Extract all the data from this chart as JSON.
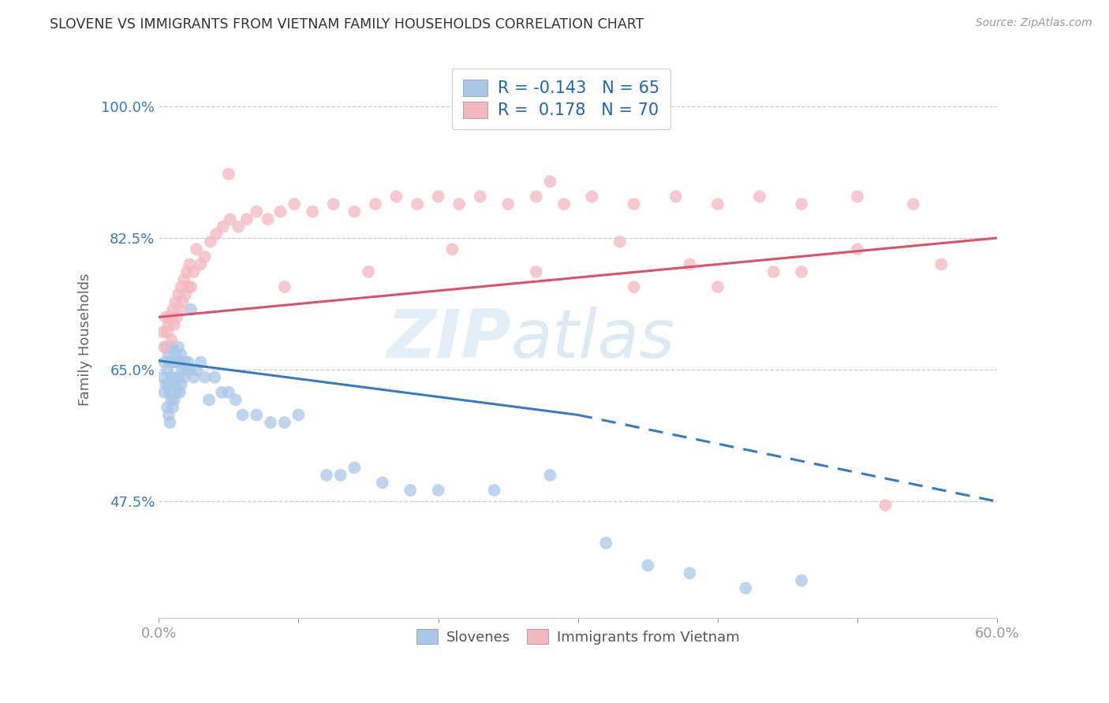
{
  "title": "SLOVENE VS IMMIGRANTS FROM VIETNAM FAMILY HOUSEHOLDS CORRELATION CHART",
  "source": "Source: ZipAtlas.com",
  "ylabel": "Family Households",
  "ytick_labels": [
    "47.5%",
    "65.0%",
    "82.5%",
    "100.0%"
  ],
  "ytick_values": [
    0.475,
    0.65,
    0.825,
    1.0
  ],
  "xlim": [
    0.0,
    0.6
  ],
  "ylim": [
    0.32,
    1.06
  ],
  "xtick_positions": [
    0.0,
    0.1,
    0.2,
    0.3,
    0.4,
    0.5,
    0.6
  ],
  "xtick_labels": [
    "0.0%",
    "",
    "",
    "",
    "",
    "",
    "60.0%"
  ],
  "legend_blue_r": "-0.143",
  "legend_blue_n": "65",
  "legend_pink_r": " 0.178",
  "legend_pink_n": "70",
  "blue_scatter_color": "#a8c8e8",
  "pink_scatter_color": "#f4b8c0",
  "blue_line_color": "#3a7abf",
  "pink_line_color": "#d9536a",
  "watermark_zip": "ZIP",
  "watermark_atlas": "atlas",
  "slovenes_x": [
    0.003,
    0.004,
    0.004,
    0.005,
    0.005,
    0.006,
    0.006,
    0.007,
    0.007,
    0.007,
    0.008,
    0.008,
    0.008,
    0.009,
    0.009,
    0.009,
    0.01,
    0.01,
    0.01,
    0.011,
    0.011,
    0.012,
    0.012,
    0.013,
    0.013,
    0.014,
    0.014,
    0.015,
    0.015,
    0.016,
    0.016,
    0.017,
    0.018,
    0.019,
    0.02,
    0.021,
    0.022,
    0.023,
    0.025,
    0.027,
    0.03,
    0.033,
    0.036,
    0.04,
    0.045,
    0.05,
    0.055,
    0.06,
    0.07,
    0.08,
    0.09,
    0.1,
    0.12,
    0.13,
    0.14,
    0.16,
    0.18,
    0.2,
    0.24,
    0.28,
    0.32,
    0.35,
    0.38,
    0.42,
    0.46
  ],
  "slovenes_y": [
    0.64,
    0.62,
    0.66,
    0.63,
    0.68,
    0.6,
    0.65,
    0.59,
    0.63,
    0.67,
    0.58,
    0.62,
    0.66,
    0.61,
    0.64,
    0.68,
    0.6,
    0.64,
    0.68,
    0.61,
    0.66,
    0.63,
    0.67,
    0.62,
    0.66,
    0.64,
    0.68,
    0.62,
    0.66,
    0.63,
    0.67,
    0.65,
    0.64,
    0.66,
    0.65,
    0.66,
    0.65,
    0.73,
    0.64,
    0.65,
    0.66,
    0.64,
    0.61,
    0.64,
    0.62,
    0.62,
    0.61,
    0.59,
    0.59,
    0.58,
    0.58,
    0.59,
    0.51,
    0.51,
    0.52,
    0.5,
    0.49,
    0.49,
    0.49,
    0.51,
    0.42,
    0.39,
    0.38,
    0.36,
    0.37
  ],
  "vietnam_x": [
    0.003,
    0.004,
    0.005,
    0.006,
    0.007,
    0.008,
    0.009,
    0.01,
    0.011,
    0.012,
    0.013,
    0.014,
    0.015,
    0.016,
    0.017,
    0.018,
    0.019,
    0.02,
    0.021,
    0.022,
    0.023,
    0.025,
    0.027,
    0.03,
    0.033,
    0.037,
    0.041,
    0.046,
    0.051,
    0.057,
    0.063,
    0.07,
    0.078,
    0.087,
    0.097,
    0.11,
    0.125,
    0.14,
    0.155,
    0.17,
    0.185,
    0.2,
    0.215,
    0.23,
    0.25,
    0.27,
    0.29,
    0.31,
    0.34,
    0.37,
    0.4,
    0.43,
    0.46,
    0.5,
    0.54,
    0.4,
    0.46,
    0.28,
    0.34,
    0.05,
    0.09,
    0.15,
    0.21,
    0.27,
    0.33,
    0.38,
    0.44,
    0.5,
    0.56,
    0.52
  ],
  "vietnam_y": [
    0.7,
    0.68,
    0.72,
    0.7,
    0.71,
    0.72,
    0.69,
    0.73,
    0.71,
    0.74,
    0.72,
    0.75,
    0.73,
    0.76,
    0.74,
    0.77,
    0.75,
    0.78,
    0.76,
    0.79,
    0.76,
    0.78,
    0.81,
    0.79,
    0.8,
    0.82,
    0.83,
    0.84,
    0.85,
    0.84,
    0.85,
    0.86,
    0.85,
    0.86,
    0.87,
    0.86,
    0.87,
    0.86,
    0.87,
    0.88,
    0.87,
    0.88,
    0.87,
    0.88,
    0.87,
    0.88,
    0.87,
    0.88,
    0.87,
    0.88,
    0.87,
    0.88,
    0.87,
    0.88,
    0.87,
    0.76,
    0.78,
    0.9,
    0.76,
    0.91,
    0.76,
    0.78,
    0.81,
    0.78,
    0.82,
    0.79,
    0.78,
    0.81,
    0.79,
    0.47
  ],
  "blue_trendline_x0": 0.0,
  "blue_trendline_y0": 0.662,
  "blue_trendline_x_solid_end": 0.3,
  "blue_trendline_y_solid_end": 0.59,
  "blue_trendline_x1": 0.6,
  "blue_trendline_y1": 0.475,
  "pink_trendline_x0": 0.0,
  "pink_trendline_y0": 0.72,
  "pink_trendline_x1": 0.6,
  "pink_trendline_y1": 0.825
}
